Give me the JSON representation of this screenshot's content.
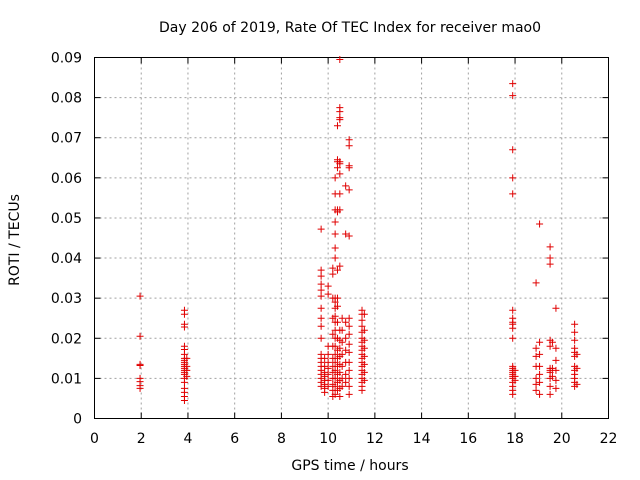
{
  "chart_data": {
    "type": "scatter",
    "title": "Day 206 of 2019, Rate Of TEC Index for receiver mao0",
    "xlabel": "GPS time / hours",
    "ylabel": "ROTI / TECUs",
    "xlim": [
      0,
      22
    ],
    "ylim": [
      0,
      0.09
    ],
    "xticks": [
      "0",
      "2",
      "4",
      "6",
      "8",
      "10",
      "12",
      "14",
      "16",
      "18",
      "20",
      "22"
    ],
    "yticks": [
      "0",
      "0.01",
      "0.02",
      "0.03",
      "0.04",
      "0.05",
      "0.06",
      "0.07",
      "0.08",
      "0.09"
    ],
    "grid": true,
    "marker": "plus",
    "color": "#e00000",
    "series": [
      {
        "name": "mao0",
        "points": [
          [
            1.95,
            0.0305
          ],
          [
            1.95,
            0.0205
          ],
          [
            1.95,
            0.0135
          ],
          [
            1.95,
            0.0132
          ],
          [
            1.95,
            0.01
          ],
          [
            1.95,
            0.0092
          ],
          [
            1.95,
            0.0082
          ],
          [
            1.95,
            0.0075
          ],
          [
            3.85,
            0.027
          ],
          [
            3.85,
            0.026
          ],
          [
            3.85,
            0.0235
          ],
          [
            3.85,
            0.0228
          ],
          [
            3.85,
            0.018
          ],
          [
            3.85,
            0.0172
          ],
          [
            3.85,
            0.016
          ],
          [
            3.85,
            0.015
          ],
          [
            3.85,
            0.0145
          ],
          [
            3.85,
            0.014
          ],
          [
            3.85,
            0.0135
          ],
          [
            3.85,
            0.013
          ],
          [
            3.85,
            0.0125
          ],
          [
            3.85,
            0.012
          ],
          [
            3.85,
            0.0115
          ],
          [
            3.85,
            0.011
          ],
          [
            3.85,
            0.01
          ],
          [
            3.85,
            0.009
          ],
          [
            3.85,
            0.0075
          ],
          [
            3.85,
            0.0065
          ],
          [
            3.85,
            0.0055
          ],
          [
            3.85,
            0.0045
          ],
          [
            3.95,
            0.015
          ],
          [
            3.95,
            0.013
          ],
          [
            3.95,
            0.012
          ],
          [
            3.95,
            0.0105
          ],
          [
            9.7,
            0.0472
          ],
          [
            9.7,
            0.037
          ],
          [
            9.7,
            0.0355
          ],
          [
            9.7,
            0.0335
          ],
          [
            9.7,
            0.032
          ],
          [
            9.7,
            0.0305
          ],
          [
            9.7,
            0.0275
          ],
          [
            9.7,
            0.025
          ],
          [
            9.7,
            0.023
          ],
          [
            9.7,
            0.02
          ],
          [
            9.7,
            0.016
          ],
          [
            9.7,
            0.015
          ],
          [
            9.7,
            0.014
          ],
          [
            9.7,
            0.013
          ],
          [
            9.7,
            0.012
          ],
          [
            9.7,
            0.011
          ],
          [
            9.7,
            0.01
          ],
          [
            9.7,
            0.009
          ],
          [
            9.7,
            0.008
          ],
          [
            9.85,
            0.015
          ],
          [
            9.85,
            0.013
          ],
          [
            9.85,
            0.0115
          ],
          [
            9.85,
            0.0105
          ],
          [
            9.85,
            0.0095
          ],
          [
            9.85,
            0.0085
          ],
          [
            9.85,
            0.0075
          ],
          [
            9.85,
            0.0065
          ],
          [
            10.0,
            0.033
          ],
          [
            10.0,
            0.031
          ],
          [
            10.0,
            0.018
          ],
          [
            10.0,
            0.016
          ],
          [
            10.0,
            0.014
          ],
          [
            10.0,
            0.0125
          ],
          [
            10.0,
            0.011
          ],
          [
            10.0,
            0.0095
          ],
          [
            10.0,
            0.008
          ],
          [
            10.2,
            0.0375
          ],
          [
            10.2,
            0.036
          ],
          [
            10.2,
            0.03
          ],
          [
            10.2,
            0.025
          ],
          [
            10.2,
            0.021
          ],
          [
            10.2,
            0.018
          ],
          [
            10.2,
            0.015
          ],
          [
            10.2,
            0.013
          ],
          [
            10.2,
            0.0115
          ],
          [
            10.2,
            0.01
          ],
          [
            10.2,
            0.0085
          ],
          [
            10.2,
            0.007
          ],
          [
            10.2,
            0.0055
          ],
          [
            10.3,
            0.06
          ],
          [
            10.3,
            0.056
          ],
          [
            10.3,
            0.052
          ],
          [
            10.3,
            0.049
          ],
          [
            10.3,
            0.046
          ],
          [
            10.3,
            0.0425
          ],
          [
            10.3,
            0.04
          ],
          [
            10.3,
            0.03
          ],
          [
            10.3,
            0.029
          ],
          [
            10.3,
            0.0275
          ],
          [
            10.3,
            0.0255
          ],
          [
            10.3,
            0.024
          ],
          [
            10.3,
            0.022
          ],
          [
            10.3,
            0.02
          ],
          [
            10.3,
            0.018
          ],
          [
            10.3,
            0.016
          ],
          [
            10.3,
            0.014
          ],
          [
            10.3,
            0.012
          ],
          [
            10.3,
            0.01
          ],
          [
            10.3,
            0.008
          ],
          [
            10.3,
            0.006
          ],
          [
            10.4,
            0.073
          ],
          [
            10.4,
            0.0645
          ],
          [
            10.4,
            0.064
          ],
          [
            10.4,
            0.0625
          ],
          [
            10.4,
            0.052
          ],
          [
            10.4,
            0.0515
          ],
          [
            10.4,
            0.037
          ],
          [
            10.4,
            0.03
          ],
          [
            10.4,
            0.028
          ],
          [
            10.4,
            0.024
          ],
          [
            10.4,
            0.02
          ],
          [
            10.4,
            0.017
          ],
          [
            10.4,
            0.015
          ],
          [
            10.4,
            0.013
          ],
          [
            10.4,
            0.011
          ],
          [
            10.4,
            0.009
          ],
          [
            10.4,
            0.007
          ],
          [
            10.5,
            0.0895
          ],
          [
            10.5,
            0.0775
          ],
          [
            10.5,
            0.0765
          ],
          [
            10.5,
            0.075
          ],
          [
            10.5,
            0.0745
          ],
          [
            10.5,
            0.064
          ],
          [
            10.5,
            0.0635
          ],
          [
            10.5,
            0.061
          ],
          [
            10.5,
            0.056
          ],
          [
            10.5,
            0.052
          ],
          [
            10.5,
            0.038
          ],
          [
            10.5,
            0.022
          ],
          [
            10.5,
            0.0195
          ],
          [
            10.5,
            0.0175
          ],
          [
            10.5,
            0.0155
          ],
          [
            10.5,
            0.0135
          ],
          [
            10.5,
            0.0115
          ],
          [
            10.5,
            0.0095
          ],
          [
            10.5,
            0.0075
          ],
          [
            10.5,
            0.0055
          ],
          [
            10.6,
            0.025
          ],
          [
            10.6,
            0.022
          ],
          [
            10.6,
            0.019
          ],
          [
            10.6,
            0.016
          ],
          [
            10.6,
            0.013
          ],
          [
            10.6,
            0.01
          ],
          [
            10.6,
            0.008
          ],
          [
            10.75,
            0.058
          ],
          [
            10.75,
            0.046
          ],
          [
            10.75,
            0.024
          ],
          [
            10.75,
            0.02
          ],
          [
            10.75,
            0.017
          ],
          [
            10.75,
            0.014
          ],
          [
            10.75,
            0.011
          ],
          [
            10.75,
            0.009
          ],
          [
            10.9,
            0.0695
          ],
          [
            10.9,
            0.068
          ],
          [
            10.9,
            0.063
          ],
          [
            10.9,
            0.0625
          ],
          [
            10.9,
            0.057
          ],
          [
            10.9,
            0.0455
          ],
          [
            10.9,
            0.025
          ],
          [
            10.9,
            0.023
          ],
          [
            10.9,
            0.021
          ],
          [
            10.9,
            0.0185
          ],
          [
            10.9,
            0.0165
          ],
          [
            10.9,
            0.014
          ],
          [
            10.9,
            0.012
          ],
          [
            10.9,
            0.01
          ],
          [
            10.9,
            0.008
          ],
          [
            10.9,
            0.006
          ],
          [
            11.45,
            0.027
          ],
          [
            11.45,
            0.026
          ],
          [
            11.45,
            0.0245
          ],
          [
            11.45,
            0.023
          ],
          [
            11.45,
            0.0215
          ],
          [
            11.45,
            0.02
          ],
          [
            11.45,
            0.019
          ],
          [
            11.45,
            0.018
          ],
          [
            11.45,
            0.017
          ],
          [
            11.45,
            0.016
          ],
          [
            11.45,
            0.015
          ],
          [
            11.45,
            0.014
          ],
          [
            11.45,
            0.013
          ],
          [
            11.45,
            0.012
          ],
          [
            11.45,
            0.011
          ],
          [
            11.45,
            0.01
          ],
          [
            11.45,
            0.009
          ],
          [
            11.45,
            0.008
          ],
          [
            11.45,
            0.007
          ],
          [
            11.55,
            0.026
          ],
          [
            11.55,
            0.022
          ],
          [
            11.55,
            0.0195
          ],
          [
            11.55,
            0.0175
          ],
          [
            11.55,
            0.0155
          ],
          [
            11.55,
            0.0135
          ],
          [
            11.55,
            0.0115
          ],
          [
            11.55,
            0.0095
          ],
          [
            17.9,
            0.0835
          ],
          [
            17.9,
            0.0805
          ],
          [
            17.9,
            0.067
          ],
          [
            17.9,
            0.06
          ],
          [
            17.9,
            0.056
          ],
          [
            17.9,
            0.027
          ],
          [
            17.9,
            0.025
          ],
          [
            17.9,
            0.024
          ],
          [
            17.9,
            0.0235
          ],
          [
            17.9,
            0.0225
          ],
          [
            17.9,
            0.02
          ],
          [
            17.9,
            0.013
          ],
          [
            17.9,
            0.0125
          ],
          [
            17.9,
            0.012
          ],
          [
            17.9,
            0.0115
          ],
          [
            17.9,
            0.011
          ],
          [
            17.9,
            0.0105
          ],
          [
            17.9,
            0.01
          ],
          [
            17.9,
            0.009
          ],
          [
            17.9,
            0.008
          ],
          [
            17.9,
            0.007
          ],
          [
            17.9,
            0.006
          ],
          [
            18.0,
            0.012
          ],
          [
            18.0,
            0.0105
          ],
          [
            18.0,
            0.0095
          ],
          [
            18.9,
            0.0338
          ],
          [
            18.9,
            0.0175
          ],
          [
            18.9,
            0.0155
          ],
          [
            18.9,
            0.013
          ],
          [
            18.9,
            0.01
          ],
          [
            18.9,
            0.0085
          ],
          [
            18.9,
            0.007
          ],
          [
            19.05,
            0.0485
          ],
          [
            19.05,
            0.019
          ],
          [
            19.05,
            0.016
          ],
          [
            19.05,
            0.013
          ],
          [
            19.05,
            0.011
          ],
          [
            19.05,
            0.009
          ],
          [
            19.05,
            0.006
          ],
          [
            19.5,
            0.0428
          ],
          [
            19.5,
            0.04
          ],
          [
            19.5,
            0.0385
          ],
          [
            19.5,
            0.0195
          ],
          [
            19.5,
            0.018
          ],
          [
            19.5,
            0.0125
          ],
          [
            19.5,
            0.012
          ],
          [
            19.5,
            0.0115
          ],
          [
            19.5,
            0.01
          ],
          [
            19.5,
            0.008
          ],
          [
            19.5,
            0.006
          ],
          [
            19.6,
            0.019
          ],
          [
            19.6,
            0.0125
          ],
          [
            19.6,
            0.0105
          ],
          [
            19.75,
            0.0275
          ],
          [
            19.75,
            0.0175
          ],
          [
            19.75,
            0.0145
          ],
          [
            19.75,
            0.012
          ],
          [
            19.75,
            0.0095
          ],
          [
            19.75,
            0.0075
          ],
          [
            20.55,
            0.0235
          ],
          [
            20.55,
            0.0215
          ],
          [
            20.55,
            0.0195
          ],
          [
            20.55,
            0.0175
          ],
          [
            20.55,
            0.0165
          ],
          [
            20.55,
            0.0155
          ],
          [
            20.55,
            0.013
          ],
          [
            20.55,
            0.012
          ],
          [
            20.55,
            0.011
          ],
          [
            20.55,
            0.01
          ],
          [
            20.55,
            0.009
          ],
          [
            20.55,
            0.008
          ],
          [
            20.65,
            0.016
          ],
          [
            20.65,
            0.0125
          ],
          [
            20.65,
            0.0085
          ]
        ]
      }
    ]
  }
}
